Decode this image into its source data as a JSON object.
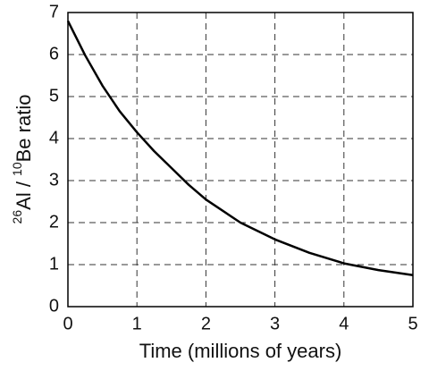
{
  "chart_data": {
    "type": "line",
    "x_label": "Time (millions of years)",
    "y_label_parts": [
      {
        "text": "26",
        "sup": true
      },
      {
        "text": "Al / ",
        "sup": false
      },
      {
        "text": "10",
        "sup": true
      },
      {
        "text": "Be ratio",
        "sup": false
      }
    ],
    "x": [
      0,
      0.25,
      0.5,
      0.75,
      1,
      1.25,
      1.5,
      1.75,
      2,
      2.5,
      3,
      3.5,
      4,
      4.5,
      5
    ],
    "series": [
      {
        "color": "#000000",
        "values": [
          6.8,
          5.98,
          5.26,
          4.65,
          4.15,
          3.7,
          3.3,
          2.9,
          2.55,
          2.0,
          1.6,
          1.28,
          1.03,
          0.87,
          0.75
        ]
      }
    ],
    "xlim": [
      0,
      5
    ],
    "xticks": [
      0,
      1,
      2,
      3,
      4,
      5
    ],
    "ylim": [
      0,
      7
    ],
    "yticks": [
      0,
      1,
      2,
      3,
      4,
      5,
      6,
      7
    ],
    "grid": true
  }
}
